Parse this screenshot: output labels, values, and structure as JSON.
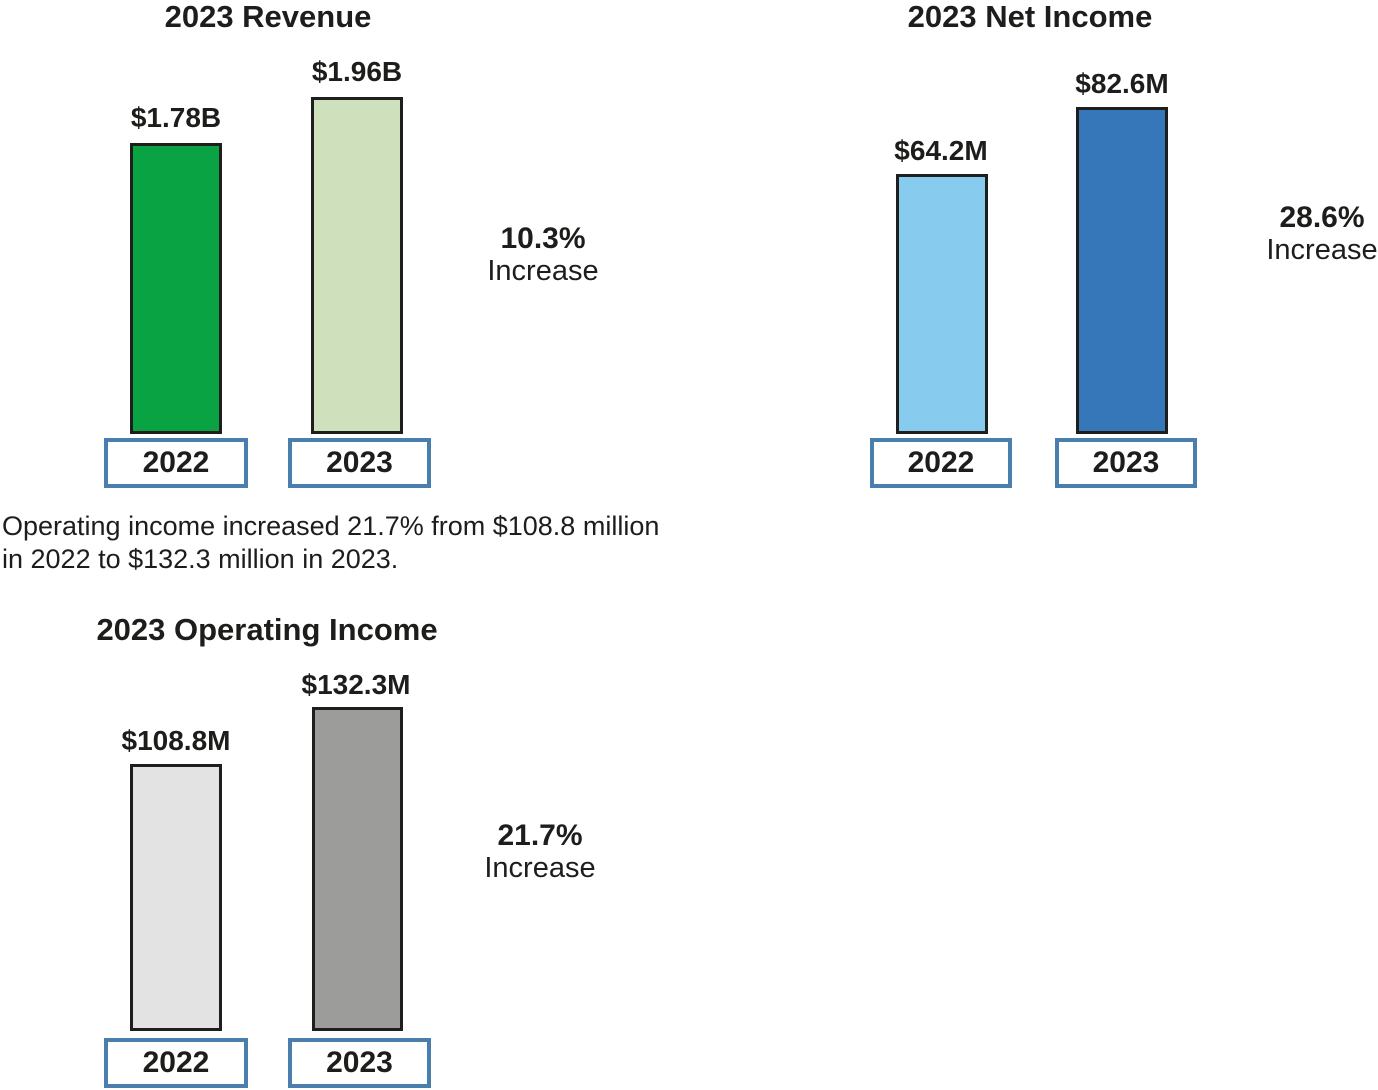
{
  "charts": [
    {
      "title": "2023 Revenue",
      "bars": [
        {
          "year": "2022",
          "label": "$1.78B",
          "color": "#0aa344"
        },
        {
          "year": "2023",
          "label": "$1.96B",
          "color": "#cfe0bd"
        }
      ],
      "increase_pct": "10.3%",
      "increase_word": "Increase"
    },
    {
      "title": "2023 Net Income",
      "bars": [
        {
          "year": "2022",
          "label": "$64.2M",
          "color": "#87cbee"
        },
        {
          "year": "2023",
          "label": "$82.6M",
          "color": "#3577b9"
        }
      ],
      "increase_pct": "28.6%",
      "increase_word": "Increase"
    },
    {
      "title": "2023 Operating Income",
      "bars": [
        {
          "year": "2022",
          "label": "$108.8M",
          "color": "#e2e3e2"
        },
        {
          "year": "2023",
          "label": "$132.3M",
          "color": "#9c9c9b"
        }
      ],
      "increase_pct": "21.7%",
      "increase_word": "Increase"
    }
  ],
  "note_line1": "Operating income increased 21.7% from $108.8 million",
  "note_line2": "in 2022 to $132.3 million in 2023.",
  "colors": {
    "revenue_2022": "#0aa344",
    "revenue_2023": "#cfe0bd",
    "net_income_2022": "#87cbee",
    "net_income_2023": "#3577b9",
    "operating_income_2022": "#e2e3e2",
    "operating_income_2023": "#9c9c9b",
    "bar_border": "#1e1e1c",
    "year_box_border": "#4a7eac",
    "text": "#1d1d1b"
  },
  "chart_data": [
    {
      "type": "bar",
      "title": "2023 Revenue",
      "categories": [
        "2022",
        "2023"
      ],
      "values": [
        1.78,
        1.96
      ],
      "value_labels": [
        "$1.78B",
        "$1.96B"
      ],
      "annotation": "10.3% Increase",
      "colors": [
        "#0aa344",
        "#cfe0bd"
      ],
      "legend_position": "none",
      "grid": false
    },
    {
      "type": "bar",
      "title": "2023 Net Income",
      "categories": [
        "2022",
        "2023"
      ],
      "values": [
        64.2,
        82.6
      ],
      "value_labels": [
        "$64.2M",
        "$82.6M"
      ],
      "annotation": "28.6% Increase",
      "colors": [
        "#87cbee",
        "#3577b9"
      ],
      "legend_position": "none",
      "grid": false
    },
    {
      "type": "bar",
      "title": "2023 Operating Income",
      "categories": [
        "2022",
        "2023"
      ],
      "values": [
        108.8,
        132.3
      ],
      "value_labels": [
        "$108.8M",
        "$132.3M"
      ],
      "annotation": "21.7% Increase",
      "colors": [
        "#e2e3e2",
        "#9c9c9b"
      ],
      "legend_position": "none",
      "grid": false
    }
  ]
}
